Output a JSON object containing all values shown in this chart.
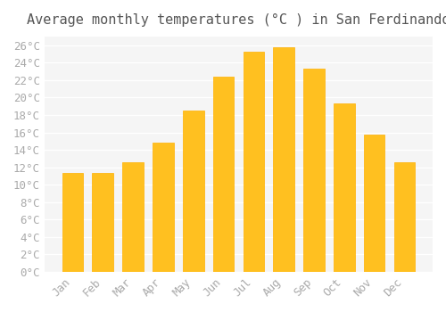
{
  "title": "Average monthly temperatures (°C ) in San Ferdinando",
  "months": [
    "Jan",
    "Feb",
    "Mar",
    "Apr",
    "May",
    "Jun",
    "Jul",
    "Aug",
    "Sep",
    "Oct",
    "Nov",
    "Dec"
  ],
  "temperatures": [
    11.4,
    11.4,
    12.6,
    14.8,
    18.5,
    22.4,
    25.3,
    25.8,
    23.3,
    19.3,
    15.7,
    12.6
  ],
  "bar_color": "#FFC020",
  "bar_edge_color": "#FFB000",
  "background_color": "#FFFFFF",
  "plot_bg_color": "#F5F5F5",
  "grid_color": "#FFFFFF",
  "tick_label_color": "#AAAAAA",
  "title_color": "#555555",
  "ylim": [
    0,
    27
  ],
  "yticks": [
    0,
    2,
    4,
    6,
    8,
    10,
    12,
    14,
    16,
    18,
    20,
    22,
    24,
    26
  ],
  "title_fontsize": 11,
  "tick_fontsize": 9
}
